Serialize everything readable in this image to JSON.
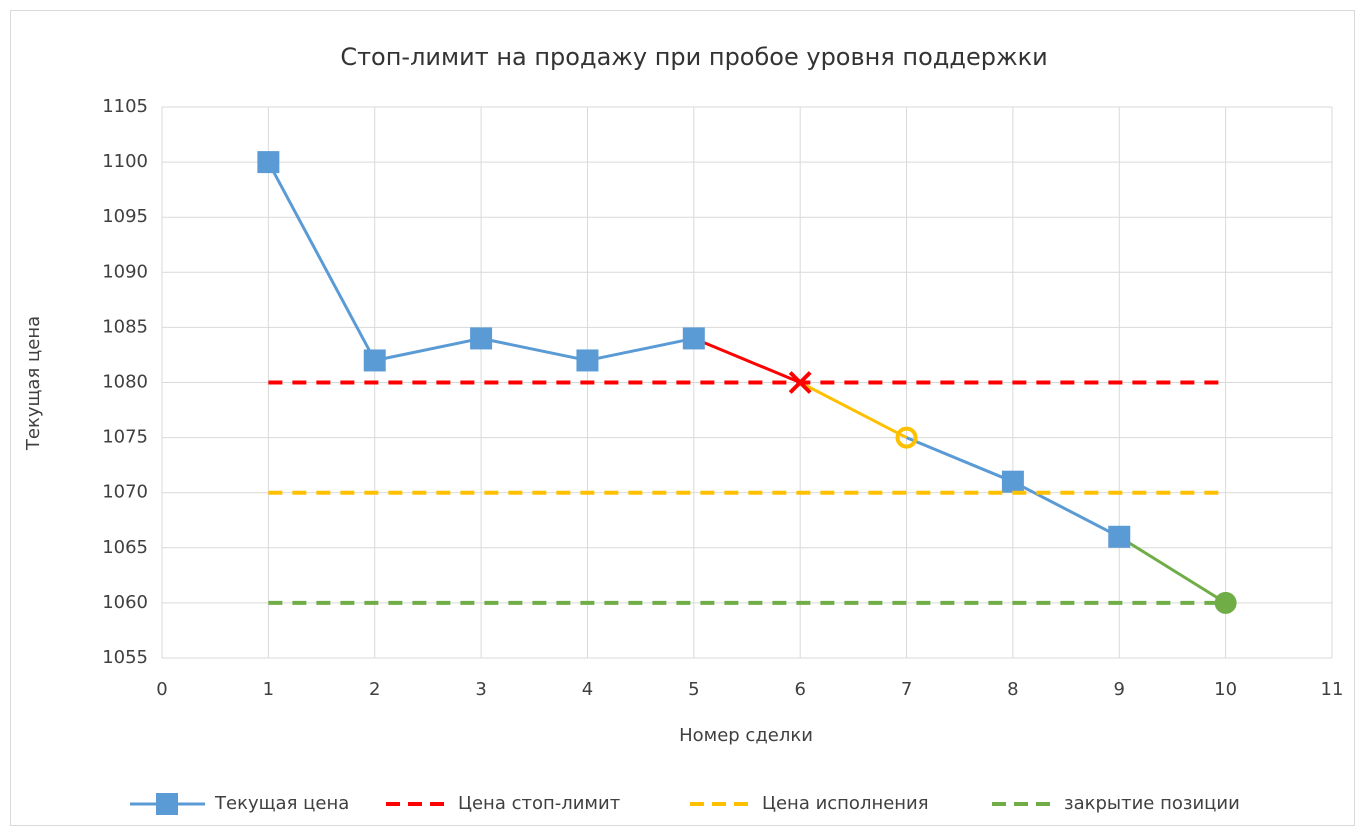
{
  "chart_data": {
    "type": "line",
    "title": "Стоп-лимит на продажу при пробое уровня поддержки",
    "xlabel": "Номер сделки",
    "ylabel": "Текущая цена",
    "x": [
      1,
      2,
      3,
      4,
      5,
      6,
      7,
      8,
      9,
      10
    ],
    "xlim": [
      0,
      11
    ],
    "xticks": [
      0,
      1,
      2,
      3,
      4,
      5,
      6,
      7,
      8,
      9,
      10,
      11
    ],
    "ylim": [
      1055,
      1105
    ],
    "yticks": [
      1055,
      1060,
      1065,
      1070,
      1075,
      1080,
      1085,
      1090,
      1095,
      1100,
      1105
    ],
    "grid": true,
    "legend": "bottom",
    "series": [
      {
        "name": "Текущая цена",
        "color": "#5b9bd5",
        "style": "solid",
        "values": [
          1100,
          1082,
          1084,
          1082,
          1084,
          1080,
          1075,
          1071,
          1066,
          1060
        ],
        "segment_colors": [
          "#5b9bd5",
          "#5b9bd5",
          "#5b9bd5",
          "#5b9bd5",
          "#ff0000",
          "#ffc000",
          "#5b9bd5",
          "#5b9bd5",
          "#70ad47"
        ],
        "markers": [
          "square",
          "square",
          "square",
          "square",
          "square",
          "x",
          "circle-open",
          "square",
          "square",
          "circle"
        ],
        "marker_colors": [
          "#5b9bd5",
          "#5b9bd5",
          "#5b9bd5",
          "#5b9bd5",
          "#5b9bd5",
          "#ff0000",
          "#ffc000",
          "#5b9bd5",
          "#5b9bd5",
          "#70ad47"
        ]
      },
      {
        "name": "Цена стоп-лимит",
        "color": "#ff0000",
        "style": "dashed",
        "values": [
          1080,
          1080,
          1080,
          1080,
          1080,
          1080,
          1080,
          1080,
          1080,
          1080
        ]
      },
      {
        "name": "Цена исполнения",
        "color": "#ffc000",
        "style": "dashed",
        "values": [
          1070,
          1070,
          1070,
          1070,
          1070,
          1070,
          1070,
          1070,
          1070,
          1070
        ]
      },
      {
        "name": "закрытие позиции",
        "color": "#70ad47",
        "style": "dashed",
        "values": [
          1060,
          1060,
          1060,
          1060,
          1060,
          1060,
          1060,
          1060,
          1060,
          1060
        ]
      }
    ]
  }
}
